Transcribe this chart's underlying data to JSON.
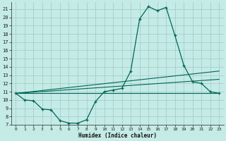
{
  "xlabel": "Humidex (Indice chaleur)",
  "xlim": [
    -0.5,
    23.5
  ],
  "ylim": [
    7.0,
    21.8
  ],
  "xticks": [
    0,
    1,
    2,
    3,
    4,
    5,
    6,
    7,
    8,
    9,
    10,
    11,
    12,
    13,
    14,
    15,
    16,
    17,
    18,
    19,
    20,
    21,
    22,
    23
  ],
  "yticks": [
    7,
    8,
    9,
    10,
    11,
    12,
    13,
    14,
    15,
    16,
    17,
    18,
    19,
    20,
    21
  ],
  "bg_color": "#c5ebe6",
  "grid_color": "#a0c8c4",
  "line_color": "#006655",
  "curve_x": [
    0,
    1,
    2,
    3,
    4,
    5,
    6,
    7,
    8,
    9,
    10,
    11,
    12,
    13,
    14,
    15,
    16,
    17,
    18,
    19,
    20,
    21,
    22,
    23
  ],
  "curve_y": [
    10.8,
    10.0,
    9.9,
    8.9,
    8.8,
    7.5,
    7.2,
    7.2,
    7.6,
    9.8,
    11.0,
    11.2,
    11.4,
    13.5,
    19.8,
    21.3,
    20.8,
    21.2,
    17.8,
    14.2,
    12.2,
    12.0,
    11.0,
    10.8
  ],
  "upper_line_x": [
    0,
    23
  ],
  "upper_line_y": [
    10.8,
    13.5
  ],
  "mid_line_x": [
    0,
    23
  ],
  "mid_line_y": [
    10.8,
    12.5
  ],
  "lower_line_x": [
    0,
    23
  ],
  "lower_line_y": [
    10.8,
    10.8
  ]
}
